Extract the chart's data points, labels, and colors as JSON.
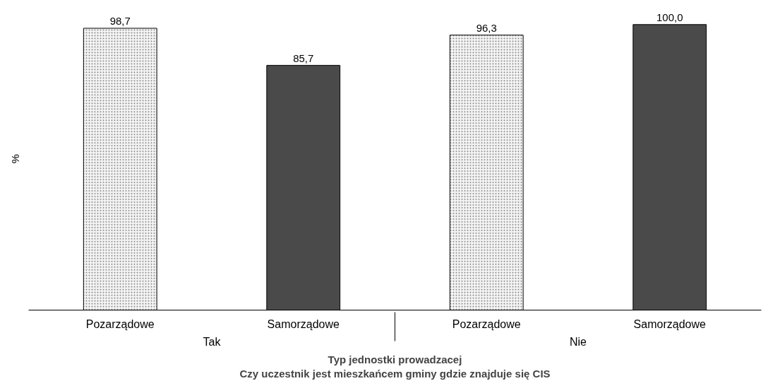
{
  "chart_data": {
    "type": "bar",
    "categories": [
      "Tak",
      "Nie"
    ],
    "series": [
      {
        "name": "Pozarządowe",
        "color": "#f4f4f4",
        "values": [
          98.7,
          96.3
        ],
        "value_labels": [
          "98,7",
          "96,3"
        ]
      },
      {
        "name": "Samorządowe",
        "color": "#4a4a4a",
        "values": [
          85.7,
          100.0
        ],
        "value_labels": [
          "85,7",
          "100,0"
        ]
      }
    ],
    "grid": false,
    "tick_labels": "x",
    "ylabel": "%",
    "xlabel": "Typ jednostki prowadzacej\nCzy uczestnik jest mieszkańcem gminy gdzie znajduje się CIS"
  }
}
